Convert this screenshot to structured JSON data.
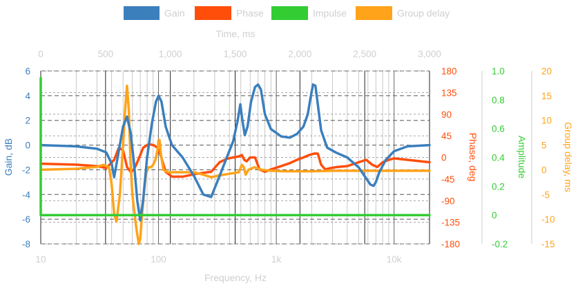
{
  "chart_data": {
    "type": "line",
    "title": "",
    "legend": {
      "placement": "top",
      "items": [
        {
          "name": "Gain",
          "color": "#3b7fbd"
        },
        {
          "name": "Phase",
          "color": "#ff4e0a"
        },
        {
          "name": "Impulse",
          "color": "#33cc33"
        },
        {
          "name": "Group delay",
          "color": "#ffa31a"
        }
      ]
    },
    "axes": {
      "x_bottom": {
        "label": "Frequency, Hz",
        "scale": "log",
        "range": [
          10,
          20000
        ],
        "ticks": [
          10,
          100,
          1000,
          10000
        ],
        "tick_labels": [
          "10",
          "100",
          "1k",
          "10k"
        ]
      },
      "x_top": {
        "label": "Time, ms",
        "range": [
          0,
          3000
        ],
        "ticks": [
          0,
          500,
          1000,
          1500,
          2000,
          2500,
          3000
        ],
        "tick_labels": [
          "0",
          "500",
          "1,000",
          "1,500",
          "2,000",
          "2,500",
          "3,000"
        ]
      },
      "y_gain": {
        "label": "Gain, dB",
        "range": [
          -8,
          6
        ],
        "ticks": [
          -8,
          -6,
          -4,
          -2,
          0,
          2,
          4,
          6
        ],
        "color": "#3b7fbd"
      },
      "y_phase": {
        "label": "Phase, deg",
        "range": [
          -180,
          180
        ],
        "ticks": [
          -180,
          -135,
          -90,
          -45,
          0,
          45,
          90,
          135,
          180
        ],
        "color": "#ff4e0a"
      },
      "y_amplitude": {
        "label": "Amplitude",
        "range": [
          -0.2,
          1.0
        ],
        "ticks": [
          -0.2,
          0,
          0.2,
          0.4,
          0.6,
          0.8,
          1.0
        ],
        "tick_labels": [
          "-0.2",
          "0",
          "0.2",
          "0.4",
          "0.6",
          "0.8",
          "1.0"
        ],
        "color": "#33cc33"
      },
      "y_group_delay": {
        "label": "Group delay, ms",
        "range": [
          -15,
          20
        ],
        "ticks": [
          -15,
          -10,
          -5,
          0,
          5,
          10,
          15,
          20
        ],
        "color": "#ffa31a"
      }
    },
    "grid": true,
    "series": [
      {
        "name": "Gain",
        "x_axis": "x_bottom",
        "y_axis": "y_gain",
        "x": [
          10,
          20,
          30,
          36,
          40,
          42,
          45,
          50,
          54,
          58,
          62,
          66,
          70,
          74,
          80,
          88,
          95,
          100,
          106,
          115,
          130,
          160,
          200,
          240,
          280,
          330,
          380,
          430,
          470,
          495,
          515,
          540,
          570,
          610,
          660,
          700,
          740,
          800,
          900,
          1100,
          1300,
          1500,
          1700,
          1850,
          1950,
          2050,
          2150,
          2250,
          2400,
          2700,
          3200,
          4000,
          5000,
          5800,
          6300,
          6700,
          7000,
          7500,
          8500,
          10000,
          13000,
          20000
        ],
        "values": [
          0,
          -0.1,
          -0.3,
          -0.6,
          -1.5,
          -2.6,
          -1.0,
          1.5,
          2.3,
          1.0,
          -1.5,
          -4.5,
          -6.1,
          -4.5,
          -1.0,
          1.8,
          3.5,
          4.0,
          3.5,
          1.5,
          0.0,
          -1.0,
          -2.5,
          -4.0,
          -4.2,
          -2.5,
          -1.0,
          0.3,
          2.0,
          3.3,
          2.0,
          0.8,
          1.5,
          3.5,
          4.7,
          4.9,
          4.5,
          2.5,
          1.3,
          0.7,
          0.6,
          0.9,
          1.5,
          2.5,
          3.8,
          4.9,
          4.8,
          3.3,
          1.2,
          -0.2,
          -0.6,
          -1.0,
          -1.8,
          -2.7,
          -3.2,
          -3.3,
          -3.0,
          -2.2,
          -1.2,
          -0.5,
          -0.1,
          0
        ]
      },
      {
        "name": "Phase",
        "x_axis": "x_bottom",
        "y_axis": "y_phase",
        "x": [
          10,
          20,
          30,
          36,
          42,
          46,
          50,
          54,
          58,
          62,
          66,
          70,
          74,
          80,
          86,
          92,
          98,
          104,
          115,
          130,
          160,
          200,
          240,
          280,
          330,
          380,
          430,
          480,
          510,
          535,
          560,
          600,
          660,
          720,
          800,
          900,
          1100,
          1300,
          1500,
          1700,
          1900,
          2100,
          2250,
          2400,
          2600,
          2900,
          3300,
          4000,
          5000,
          5800,
          6500,
          7200,
          8000,
          9000,
          10000,
          13000,
          20000
        ],
        "values": [
          -13,
          -15,
          -18,
          -22,
          -5,
          20,
          15,
          -20,
          -30,
          -25,
          -10,
          5,
          20,
          26,
          27,
          25,
          20,
          5,
          -30,
          -40,
          -40,
          -35,
          -32,
          -30,
          -10,
          -3,
          0,
          2,
          5,
          -5,
          -8,
          0,
          0,
          -25,
          -30,
          -25,
          -18,
          -12,
          -5,
          0,
          5,
          8,
          8,
          -15,
          -25,
          -22,
          -20,
          -18,
          -10,
          -5,
          -15,
          -20,
          -10,
          -5,
          -2,
          -5,
          -10
        ]
      },
      {
        "name": "Impulse",
        "x_axis": "x_top",
        "y_axis": "y_amplitude",
        "x": [
          0,
          0,
          0,
          15,
          3000
        ],
        "values": [
          0,
          0.95,
          0.0,
          0.0,
          0.0
        ]
      },
      {
        "name": "Group delay",
        "x_axis": "x_bottom",
        "y_axis": "y_group_delay",
        "x": [
          10,
          20,
          30,
          34,
          38,
          40,
          42,
          44,
          47,
          50,
          52,
          54,
          56,
          58,
          60,
          62,
          65,
          68,
          70,
          72,
          75,
          78,
          82,
          86,
          90,
          94,
          98,
          100,
          102,
          105,
          110,
          120,
          150,
          200,
          240,
          280,
          320,
          400,
          480,
          510,
          530,
          550,
          580,
          650,
          750,
          900,
          1200,
          2000,
          3000,
          5000,
          10000,
          20000
        ],
        "values": [
          0,
          0.2,
          0.6,
          1.0,
          0.5,
          -3.0,
          -9.0,
          -10.5,
          -5.0,
          5.0,
          12.0,
          17.0,
          12.0,
          1.0,
          -5.0,
          -8.0,
          -12.0,
          -15.0,
          -14.0,
          -10.0,
          -5.0,
          -1.0,
          0.5,
          0.5,
          1.0,
          2.0,
          4.0,
          6.0,
          6.0,
          3.0,
          0.0,
          -0.5,
          -0.5,
          -0.5,
          -1.0,
          -1.5,
          -1.2,
          -0.8,
          -0.5,
          1.0,
          0.5,
          -1.0,
          0.0,
          0.5,
          0.0,
          -0.2,
          -0.3,
          -0.3,
          -0.2,
          -0.2,
          -0.2,
          -0.2
        ]
      }
    ]
  }
}
